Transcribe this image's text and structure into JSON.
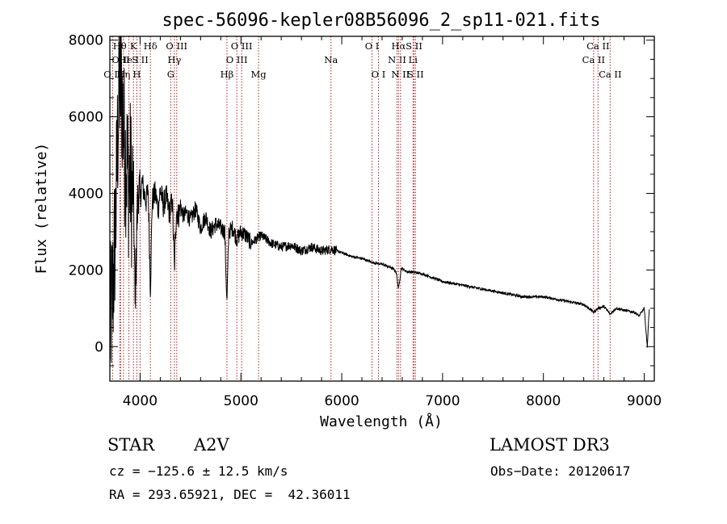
{
  "chart_data": {
    "type": "line",
    "title": "spec-56096-kepler08B56096_2_sp11-021.fits",
    "xlabel": "Wavelength (Å)",
    "ylabel": "Flux (relative)",
    "xlim": [
      3700,
      9100
    ],
    "ylim": [
      -900,
      8100
    ],
    "x_ticks": [
      4000,
      5000,
      6000,
      7000,
      8000,
      9000
    ],
    "y_ticks": [
      0,
      2000,
      4000,
      6000,
      8000
    ],
    "series": [
      {
        "name": "flux",
        "x": [
          3700,
          3730,
          3760,
          3780,
          3800,
          3820,
          3835,
          3850,
          3870,
          3889,
          3905,
          3920,
          3935,
          3950,
          3968,
          3985,
          4000,
          4020,
          4040,
          4060,
          4080,
          4102,
          4120,
          4150,
          4180,
          4200,
          4230,
          4260,
          4290,
          4320,
          4340,
          4360,
          4380,
          4400,
          4430,
          4460,
          4500,
          4550,
          4600,
          4650,
          4700,
          4750,
          4800,
          4840,
          4861,
          4880,
          4920,
          4960,
          5000,
          5050,
          5100,
          5150,
          5200,
          5300,
          5400,
          5500,
          5600,
          5700,
          5800,
          5900,
          6000,
          6100,
          6200,
          6300,
          6400,
          6500,
          6540,
          6563,
          6590,
          6650,
          6700,
          6800,
          6900,
          7000,
          7200,
          7400,
          7600,
          7800,
          8000,
          8200,
          8400,
          8498,
          8542,
          8600,
          8662,
          8720,
          8800,
          8900,
          8950,
          9000,
          9030,
          9050
        ],
        "y": [
          400,
          1500,
          3500,
          5800,
          7000,
          6500,
          5800,
          5000,
          4800,
          4200,
          4500,
          3900,
          4100,
          1000,
          3200,
          4200,
          3800,
          4300,
          4000,
          3800,
          4100,
          1500,
          3800,
          4000,
          3600,
          4100,
          3700,
          3900,
          3500,
          3800,
          2000,
          3600,
          3400,
          3700,
          3400,
          3500,
          3300,
          3600,
          3100,
          3400,
          3000,
          3200,
          3100,
          3000,
          1100,
          3000,
          3100,
          2800,
          3000,
          2900,
          2700,
          2800,
          2900,
          2700,
          2600,
          2650,
          2500,
          2600,
          2500,
          2550,
          2450,
          2350,
          2300,
          2200,
          2150,
          2050,
          1950,
          1500,
          2050,
          1950,
          1950,
          1900,
          1800,
          1700,
          1600,
          1500,
          1400,
          1300,
          1300,
          1200,
          1100,
          900,
          1000,
          1050,
          850,
          1000,
          950,
          900,
          800,
          1000,
          0,
          1000
        ]
      }
    ],
    "spectral_lines": [
      {
        "label": "O II",
        "x": 3727,
        "row": 3
      },
      {
        "label": "Hθ",
        "x": 3798,
        "row": 1
      },
      {
        "label": "O II",
        "x": 3808,
        "row": 2
      },
      {
        "label": "Hη",
        "x": 3835,
        "row": 3
      },
      {
        "label": "He I",
        "x": 3889,
        "row": 2
      },
      {
        "label": "K",
        "x": 3934,
        "row": 1
      },
      {
        "label": "H",
        "x": 3968,
        "row": 3
      },
      {
        "label": "S II",
        "x": 4000,
        "row": 2
      },
      {
        "label": "Hδ",
        "x": 4102,
        "row": 1
      },
      {
        "label": "G",
        "x": 4304,
        "row": 3
      },
      {
        "label": "Hγ",
        "x": 4340,
        "row": 2
      },
      {
        "label": "O III",
        "x": 4363,
        "row": 1
      },
      {
        "label": "Hβ",
        "x": 4861,
        "row": 3
      },
      {
        "label": "O III",
        "x": 4959,
        "row": 2
      },
      {
        "label": "O III",
        "x": 5007,
        "row": 1
      },
      {
        "label": "Mg",
        "x": 5175,
        "row": 3
      },
      {
        "label": "Na",
        "x": 5893,
        "row": 2
      },
      {
        "label": "O I",
        "x": 6300,
        "row": 1
      },
      {
        "label": "O I",
        "x": 6364,
        "row": 3
      },
      {
        "label": "N II",
        "x": 6548,
        "row": 2
      },
      {
        "label": "Hα",
        "x": 6563,
        "row": 1
      },
      {
        "label": "N II",
        "x": 6583,
        "row": 3
      },
      {
        "label": "Li",
        "x": 6707,
        "row": 2
      },
      {
        "label": "S II",
        "x": 6717,
        "row": 1
      },
      {
        "label": "S II",
        "x": 6731,
        "row": 3
      },
      {
        "label": "Ca II",
        "x": 8498,
        "row": 2
      },
      {
        "label": "Ca II",
        "x": 8542,
        "row": 1
      },
      {
        "label": "Ca II",
        "x": 8662,
        "row": 3
      }
    ]
  },
  "info": {
    "class_label": "STAR",
    "subclass": "A2V",
    "survey": "LAMOST DR3",
    "cz": "cz = −125.6 ± 12.5 km/s",
    "obs_date": "Obs−Date: 20120617",
    "coords": "RA = 293.65921, DEC =  42.36011"
  }
}
